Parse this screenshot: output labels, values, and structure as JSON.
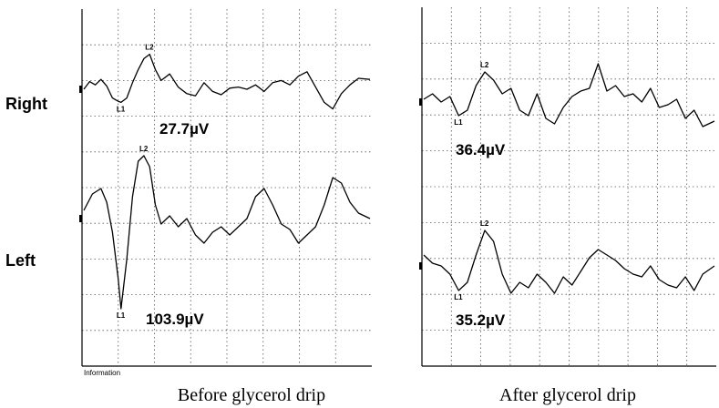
{
  "chart_data": [
    {
      "type": "line",
      "title": "Before glycerol drip",
      "series": [
        {
          "name": "Right",
          "amplitude_label": "27.7µV",
          "markers": [
            {
              "label": "L1",
              "x": 0.13
            },
            {
              "label": "L2",
              "x": 0.23
            }
          ],
          "x": [
            0,
            0.02,
            0.04,
            0.06,
            0.08,
            0.1,
            0.12,
            0.13,
            0.15,
            0.17,
            0.19,
            0.21,
            0.23,
            0.25,
            0.27,
            0.3,
            0.33,
            0.36,
            0.39,
            0.42,
            0.45,
            0.48,
            0.51,
            0.54,
            0.57,
            0.6,
            0.63,
            0.66,
            0.69,
            0.72,
            0.75,
            0.78,
            0.81,
            0.84,
            0.87,
            0.9,
            0.93,
            0.96,
            1.0
          ],
          "y": [
            0,
            0.35,
            0.2,
            0.45,
            0.15,
            -0.4,
            -0.55,
            -0.6,
            -0.4,
            0.3,
            0.9,
            1.4,
            1.6,
            0.9,
            0.4,
            0.7,
            0.1,
            -0.2,
            -0.3,
            0.3,
            -0.1,
            -0.25,
            0.05,
            0.1,
            0.0,
            0.2,
            -0.1,
            0.3,
            0.4,
            0.2,
            0.6,
            0.8,
            0.1,
            -0.6,
            -0.9,
            -0.2,
            0.2,
            0.5,
            0.45
          ]
        },
        {
          "name": "Left",
          "amplitude_label": "103.9µV",
          "markers": [
            {
              "label": "L1",
              "x": 0.13
            },
            {
              "label": "L2",
              "x": 0.21
            }
          ],
          "x": [
            0,
            0.03,
            0.06,
            0.08,
            0.1,
            0.12,
            0.13,
            0.15,
            0.17,
            0.19,
            0.21,
            0.23,
            0.25,
            0.27,
            0.3,
            0.33,
            0.36,
            0.39,
            0.42,
            0.45,
            0.48,
            0.51,
            0.54,
            0.57,
            0.6,
            0.63,
            0.66,
            0.69,
            0.72,
            0.75,
            0.78,
            0.81,
            0.84,
            0.87,
            0.9,
            0.93,
            0.96,
            1.0
          ],
          "y": [
            0.3,
            0.9,
            1.1,
            0.6,
            -0.5,
            -2.2,
            -3.3,
            -1.5,
            0.8,
            2.1,
            2.3,
            1.9,
            0.5,
            -0.2,
            0.1,
            -0.3,
            0.0,
            -0.6,
            -0.9,
            -0.5,
            -0.3,
            -0.6,
            -0.3,
            0.0,
            0.8,
            1.1,
            0.5,
            -0.2,
            -0.4,
            -0.9,
            -0.6,
            -0.3,
            0.5,
            1.5,
            1.3,
            0.6,
            0.2,
            0.0
          ]
        }
      ],
      "row_labels": [
        "Right",
        "Left"
      ],
      "grid": true
    },
    {
      "type": "line",
      "title": "After glycerol drip",
      "series": [
        {
          "name": "Right",
          "amplitude_label": "36.4µV",
          "markers": [
            {
              "label": "L1",
              "x": 0.12
            },
            {
              "label": "L2",
              "x": 0.21
            }
          ],
          "x": [
            0,
            0.03,
            0.06,
            0.09,
            0.12,
            0.15,
            0.18,
            0.21,
            0.24,
            0.27,
            0.3,
            0.33,
            0.36,
            0.39,
            0.42,
            0.45,
            0.48,
            0.51,
            0.54,
            0.57,
            0.6,
            0.63,
            0.66,
            0.69,
            0.72,
            0.75,
            0.78,
            0.81,
            0.84,
            0.87,
            0.9,
            0.93,
            0.96,
            1.0
          ],
          "y": [
            0.1,
            0.3,
            0.0,
            0.2,
            -0.5,
            -0.3,
            0.6,
            1.1,
            0.8,
            0.3,
            0.5,
            -0.3,
            -0.5,
            0.3,
            -0.6,
            -0.8,
            -0.2,
            0.2,
            0.4,
            0.5,
            1.4,
            0.4,
            0.6,
            0.2,
            0.3,
            0.0,
            0.5,
            -0.2,
            -0.1,
            0.1,
            -0.6,
            -0.3,
            -0.9,
            -0.7
          ]
        },
        {
          "name": "Left",
          "amplitude_label": "35.2µV",
          "markers": [
            {
              "label": "L1",
              "x": 0.12
            },
            {
              "label": "L2",
              "x": 0.21
            }
          ],
          "x": [
            0,
            0.03,
            0.06,
            0.09,
            0.12,
            0.15,
            0.18,
            0.21,
            0.24,
            0.27,
            0.3,
            0.33,
            0.36,
            0.39,
            0.42,
            0.45,
            0.48,
            0.51,
            0.54,
            0.57,
            0.6,
            0.63,
            0.66,
            0.69,
            0.72,
            0.75,
            0.78,
            0.81,
            0.84,
            0.87,
            0.9,
            0.93,
            0.96,
            1.0
          ],
          "y": [
            0.4,
            0.1,
            0.0,
            -0.3,
            -0.9,
            -0.6,
            0.4,
            1.3,
            0.9,
            -0.3,
            -1.0,
            -0.6,
            -0.8,
            -0.3,
            -0.6,
            -1.0,
            -0.4,
            -0.7,
            -0.2,
            0.3,
            0.6,
            0.4,
            0.2,
            -0.1,
            -0.3,
            -0.4,
            0.0,
            -0.5,
            -0.7,
            -0.8,
            -0.4,
            -0.9,
            -0.3,
            0.0
          ]
        }
      ],
      "row_labels": [],
      "grid": true
    }
  ],
  "left_panel_footnote": "Information"
}
